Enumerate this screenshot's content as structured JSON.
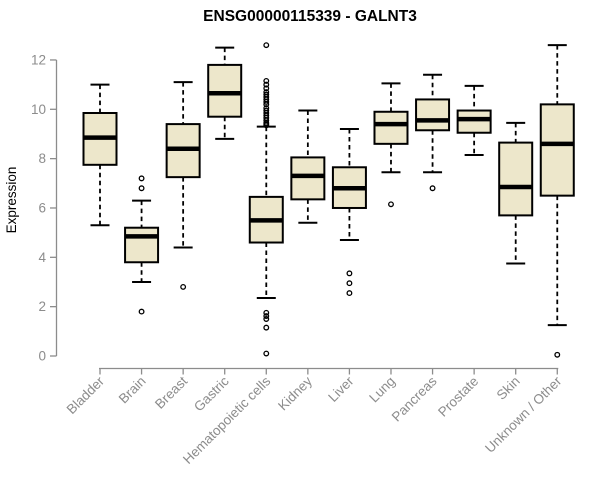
{
  "chart_data": {
    "type": "boxplot",
    "title": "ENSG00000115339 - GALNT3",
    "xlabel": "",
    "ylabel": "Expression",
    "ylim": [
      0,
      12.7
    ],
    "yticks": [
      0,
      2,
      4,
      6,
      8,
      10,
      12
    ],
    "grid": false,
    "legend": "none",
    "categories": [
      "Bladder",
      "Brain",
      "Breast",
      "Gastric",
      "Hematopoietic cells",
      "Kidney",
      "Liver",
      "Lung",
      "Pancreas",
      "Prostate",
      "Skin",
      "Unknown / Other"
    ],
    "boxes": [
      {
        "label": "Bladder",
        "low": 5.3,
        "q1": 7.75,
        "median": 8.85,
        "q3": 9.85,
        "high": 11.0,
        "outliers": []
      },
      {
        "label": "Brain",
        "low": 3.0,
        "q1": 3.8,
        "median": 4.85,
        "q3": 5.2,
        "high": 6.3,
        "outliers": [
          7.2,
          6.8,
          1.8
        ]
      },
      {
        "label": "Breast",
        "low": 4.4,
        "q1": 7.25,
        "median": 8.4,
        "q3": 9.4,
        "high": 11.1,
        "outliers": [
          2.8
        ]
      },
      {
        "label": "Gastric",
        "low": 8.8,
        "q1": 9.7,
        "median": 10.65,
        "q3": 11.8,
        "high": 12.5,
        "outliers": []
      },
      {
        "label": "Hematopoietic cells",
        "low": 2.35,
        "q1": 4.6,
        "median": 5.5,
        "q3": 6.45,
        "high": 9.3,
        "outliers": [
          12.6,
          11.15,
          11.0,
          10.85,
          10.7,
          10.6,
          10.5,
          10.4,
          10.3,
          10.2,
          10.05,
          9.95,
          9.85,
          9.75,
          9.65,
          9.55,
          9.45,
          9.4,
          9.35,
          1.75,
          1.62,
          1.5,
          1.15,
          0.1
        ]
      },
      {
        "label": "Kidney",
        "low": 5.4,
        "q1": 6.35,
        "median": 7.3,
        "q3": 8.05,
        "high": 9.95,
        "outliers": []
      },
      {
        "label": "Liver",
        "low": 4.7,
        "q1": 6.0,
        "median": 6.8,
        "q3": 7.65,
        "high": 9.2,
        "outliers": [
          3.35,
          2.95,
          2.55
        ]
      },
      {
        "label": "Lung",
        "low": 7.45,
        "q1": 8.6,
        "median": 9.4,
        "q3": 9.9,
        "high": 11.05,
        "outliers": [
          6.15
        ]
      },
      {
        "label": "Pancreas",
        "low": 7.45,
        "q1": 9.15,
        "median": 9.55,
        "q3": 10.4,
        "high": 11.4,
        "outliers": [
          6.8
        ]
      },
      {
        "label": "Prostate",
        "low": 8.15,
        "q1": 9.05,
        "median": 9.6,
        "q3": 9.95,
        "high": 10.95,
        "outliers": []
      },
      {
        "label": "Skin",
        "low": 3.75,
        "q1": 5.7,
        "median": 6.85,
        "q3": 8.65,
        "high": 9.45,
        "outliers": []
      },
      {
        "label": "Unknown / Other",
        "low": 1.25,
        "q1": 6.5,
        "median": 8.6,
        "q3": 10.2,
        "high": 12.6,
        "outliers": [
          0.05
        ]
      }
    ],
    "colors": {
      "box_fill": "#EDE7CB",
      "box_border": "#000000",
      "median": "#000000",
      "whisker": "#000000",
      "outlier": "#000000",
      "axis": "#8C8C8C",
      "tick_text": "#8C8C8C",
      "title": "#000000",
      "background": "#FFFFFF"
    }
  }
}
